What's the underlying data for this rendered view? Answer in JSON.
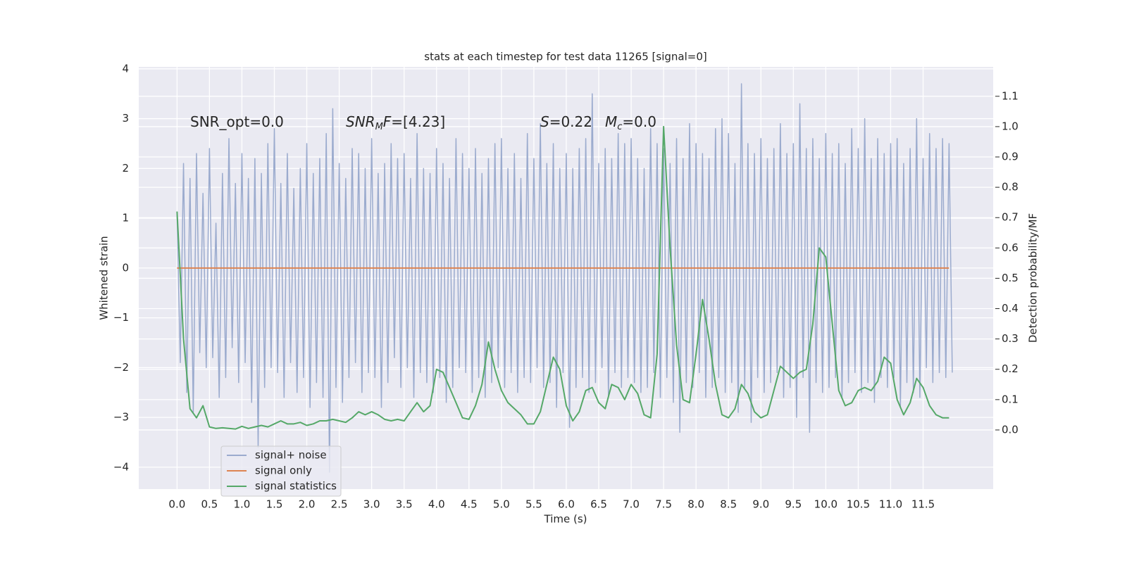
{
  "chart_data": {
    "type": "line",
    "title": "stats at each timestep for test data 11265 [signal=0]",
    "xlabel": "Time (s)",
    "ylabel": "Whitened strain",
    "y2label": "Detection probability/MF",
    "annotations": [
      [
        "SNR_opt=0.0"
      ],
      [
        "SNR",
        "M",
        "F",
        "=[4.23]"
      ],
      [
        "S",
        "=0.22"
      ],
      [
        "M",
        "c",
        "=0.0"
      ]
    ],
    "xlim": [
      -0.59,
      12.58
    ],
    "ylim": [
      -4.44,
      4.04
    ],
    "y2lim": [
      -0.195,
      1.197
    ],
    "xticks": [
      {
        "value": 0,
        "label": "0.0"
      },
      0.5,
      {
        "value": 1,
        "label": "1.0"
      },
      1.5,
      {
        "value": 2,
        "label": "2.0"
      },
      2.5,
      {
        "value": 3,
        "label": "3.0"
      },
      3.5,
      {
        "value": 4,
        "label": "4.0"
      },
      4.5,
      {
        "value": 5,
        "label": "5.0"
      },
      5.5,
      {
        "value": 6,
        "label": "6.0"
      },
      6.5,
      {
        "value": 7,
        "label": "7.0"
      },
      7.5,
      {
        "value": 8,
        "label": "8.0"
      },
      8.5,
      {
        "value": 9,
        "label": "9.0"
      },
      9.5,
      {
        "value": 10,
        "label": "10.0"
      },
      10.5,
      {
        "value": 11,
        "label": "11.0"
      },
      11.5
    ],
    "yticks": [
      {
        "value": -4,
        "label": "−4"
      },
      {
        "value": -3,
        "label": "−3"
      },
      {
        "value": -2,
        "label": "−2"
      },
      {
        "value": -1,
        "label": "−1"
      },
      0,
      1,
      2,
      3,
      4
    ],
    "y2ticks": [
      {
        "value": 0,
        "label": "0.0"
      },
      0.1,
      0.2,
      0.3,
      0.4,
      0.5,
      0.6,
      0.7,
      0.8,
      0.9,
      {
        "value": 1,
        "label": "1.0"
      },
      1.1
    ],
    "grid": true,
    "legend": "lower left",
    "x": [
      0,
      0.1,
      0.2,
      0.3,
      0.4,
      0.5,
      0.6,
      0.7,
      0.8,
      0.9,
      1,
      1.1,
      1.2,
      1.3,
      1.4,
      1.5,
      1.6,
      1.7,
      1.8,
      1.9,
      2,
      2.1,
      2.2,
      2.3,
      2.4,
      2.5,
      2.6,
      2.7,
      2.8,
      2.9,
      3,
      3.1,
      3.2,
      3.3,
      3.4,
      3.5,
      3.6,
      3.7,
      3.8,
      3.9,
      4,
      4.1,
      4.2,
      4.3,
      4.4,
      4.5,
      4.6,
      4.7,
      4.8,
      4.9,
      5,
      5.1,
      5.2,
      5.3,
      5.4,
      5.5,
      5.6,
      5.7,
      5.8,
      5.9,
      6,
      6.1,
      6.2,
      6.3,
      6.4,
      6.5,
      6.6,
      6.7,
      6.8,
      6.9,
      7,
      7.1,
      7.2,
      7.3,
      7.4,
      7.5,
      7.6,
      7.7,
      7.8,
      7.9,
      8,
      8.1,
      8.2,
      8.3,
      8.4,
      8.5,
      8.6,
      8.7,
      8.8,
      8.9,
      9,
      9.1,
      9.2,
      9.3,
      9.4,
      9.5,
      9.6,
      9.7,
      9.8,
      9.9,
      10,
      10.1,
      10.2,
      10.3,
      10.4,
      10.5,
      10.6,
      10.7,
      10.8,
      10.9,
      11,
      11.1,
      11.2,
      11.3,
      11.4,
      11.5,
      11.6,
      11.7,
      11.8,
      11.9
    ],
    "series": [
      {
        "name": "signal+ noise",
        "color": "#9babce",
        "x": [
          0,
          0.05,
          0.1,
          0.15,
          0.2,
          0.25,
          0.3,
          0.35,
          0.4,
          0.45,
          0.5,
          0.55,
          0.6,
          0.65,
          0.7,
          0.75,
          0.8,
          0.85,
          0.9,
          0.95,
          1,
          1.05,
          1.1,
          1.15,
          1.2,
          1.25,
          1.3,
          1.35,
          1.4,
          1.45,
          1.5,
          1.55,
          1.6,
          1.65,
          1.7,
          1.75,
          1.8,
          1.85,
          1.9,
          1.95,
          2,
          2.05,
          2.1,
          2.15,
          2.2,
          2.25,
          2.3,
          2.35,
          2.4,
          2.45,
          2.5,
          2.55,
          2.6,
          2.65,
          2.7,
          2.75,
          2.8,
          2.85,
          2.9,
          2.95,
          3,
          3.05,
          3.1,
          3.15,
          3.2,
          3.25,
          3.3,
          3.35,
          3.4,
          3.45,
          3.5,
          3.55,
          3.6,
          3.65,
          3.7,
          3.75,
          3.8,
          3.85,
          3.9,
          3.95,
          4,
          4.05,
          4.1,
          4.15,
          4.2,
          4.25,
          4.3,
          4.35,
          4.4,
          4.45,
          4.5,
          4.55,
          4.6,
          4.65,
          4.7,
          4.75,
          4.8,
          4.85,
          4.9,
          4.95,
          5,
          5.05,
          5.1,
          5.15,
          5.2,
          5.25,
          5.3,
          5.35,
          5.4,
          5.45,
          5.5,
          5.55,
          5.6,
          5.65,
          5.7,
          5.75,
          5.8,
          5.85,
          5.9,
          5.95,
          6,
          6.05,
          6.1,
          6.15,
          6.2,
          6.25,
          6.3,
          6.35,
          6.4,
          6.45,
          6.5,
          6.55,
          6.6,
          6.65,
          6.7,
          6.75,
          6.8,
          6.85,
          6.9,
          6.95,
          7,
          7.05,
          7.1,
          7.15,
          7.2,
          7.25,
          7.3,
          7.35,
          7.4,
          7.45,
          7.5,
          7.55,
          7.6,
          7.65,
          7.7,
          7.75,
          7.8,
          7.85,
          7.9,
          7.95,
          8,
          8.05,
          8.1,
          8.15,
          8.2,
          8.25,
          8.3,
          8.35,
          8.4,
          8.45,
          8.5,
          8.55,
          8.6,
          8.65,
          8.7,
          8.75,
          8.8,
          8.85,
          8.9,
          8.95,
          9,
          9.05,
          9.1,
          9.15,
          9.2,
          9.25,
          9.3,
          9.35,
          9.4,
          9.45,
          9.5,
          9.55,
          9.6,
          9.65,
          9.7,
          9.75,
          9.8,
          9.85,
          9.9,
          9.95,
          10,
          10.05,
          10.1,
          10.15,
          10.2,
          10.25,
          10.3,
          10.35,
          10.4,
          10.45,
          10.5,
          10.55,
          10.6,
          10.65,
          10.7,
          10.75,
          10.8,
          10.85,
          10.9,
          10.95,
          11,
          11.05,
          11.1,
          11.15,
          11.2,
          11.25,
          11.3,
          11.35,
          11.4,
          11.45,
          11.5,
          11.55,
          11.6,
          11.65,
          11.7,
          11.75,
          11.8,
          11.85,
          11.9,
          11.95
        ],
        "values": [
          1.1,
          -1.9,
          2.1,
          -2.5,
          1.8,
          -2.9,
          2.3,
          -1.7,
          1.5,
          -2.0,
          2.4,
          -1.8,
          0.9,
          -2.6,
          1.9,
          -2.2,
          2.6,
          -1.6,
          1.7,
          -2.3,
          2.3,
          -1.9,
          1.8,
          -2.7,
          2.2,
          -3.6,
          1.9,
          -2.4,
          2.5,
          -2.0,
          2.8,
          -2.1,
          1.7,
          -2.6,
          2.3,
          -1.9,
          1.6,
          -2.5,
          2.0,
          -2.2,
          2.5,
          -2.8,
          1.9,
          -2.3,
          2.2,
          -2.6,
          2.7,
          -4.1,
          3.2,
          -2.4,
          2.1,
          -2.7,
          1.8,
          -2.2,
          2.4,
          -1.9,
          2.3,
          -2.5,
          2.0,
          -2.1,
          2.6,
          -2.2,
          1.9,
          -2.8,
          2.1,
          -2.3,
          2.5,
          -1.8,
          2.2,
          -2.4,
          2.3,
          -2.0,
          1.8,
          -2.6,
          2.7,
          -2.1,
          2.0,
          -2.3,
          1.9,
          -2.5,
          2.4,
          -2.2,
          2.1,
          -2.7,
          1.8,
          -2.4,
          2.6,
          -2.0,
          2.3,
          -2.1,
          2.0,
          -2.5,
          2.4,
          -2.2,
          1.9,
          -2.6,
          2.2,
          -2.3,
          2.5,
          -2.0,
          2.6,
          -2.4,
          2.0,
          -2.1,
          2.3,
          -2.5,
          1.8,
          -2.2,
          2.7,
          -2.3,
          2.2,
          -2.0,
          2.9,
          -2.4,
          2.1,
          -2.3,
          2.5,
          -2.8,
          2.0,
          -2.1,
          2.3,
          -3.2,
          2.0,
          -2.4,
          2.4,
          -2.2,
          2.6,
          -2.5,
          3.5,
          -2.3,
          2.1,
          -2.0,
          2.4,
          -2.6,
          2.2,
          -2.1,
          2.7,
          -2.4,
          2.5,
          -2.2,
          2.6,
          -2.3,
          2.2,
          -2.5,
          2.0,
          -2.4,
          2.8,
          -2.1,
          2.5,
          -2.6,
          2.4,
          -2.2,
          2.1,
          -2.7,
          2.6,
          -3.3,
          2.2,
          -2.3,
          2.9,
          -2.4,
          2.5,
          -2.1,
          2.3,
          -2.6,
          2.2,
          -2.4,
          2.8,
          -2.2,
          3.0,
          -2.5,
          2.7,
          -2.3,
          2.1,
          -2.9,
          3.7,
          -2.4,
          2.5,
          -3.1,
          2.3,
          -2.2,
          2.6,
          -2.5,
          2.2,
          -2.3,
          2.4,
          -2.1,
          2.9,
          -2.6,
          2.3,
          -2.4,
          2.5,
          -3.0,
          3.3,
          -2.2,
          2.4,
          -3.3,
          2.6,
          -2.3,
          2.2,
          -2.5,
          2.7,
          -2.4,
          2.3,
          -2.2,
          2.5,
          -2.6,
          2.1,
          -2.3,
          2.8,
          -2.1,
          2.4,
          -2.5,
          3.0,
          -2.3,
          2.2,
          -2.7,
          2.6,
          -2.2,
          2.3,
          -2.4,
          2.5,
          -2.2,
          2.6,
          -2.8,
          2.1,
          -2.3,
          2.4,
          -2.5,
          3.0,
          -2.6,
          2.2,
          -2.0,
          2.7,
          -2.3,
          2.4,
          -2.1,
          2.6,
          -2.2,
          2.5,
          -2.1
        ]
      },
      {
        "name": "signal only",
        "color": "#dd8452",
        "values": [
          0,
          0,
          0,
          0,
          0,
          0,
          0,
          0,
          0,
          0,
          0,
          0,
          0,
          0,
          0,
          0,
          0,
          0,
          0,
          0,
          0,
          0,
          0,
          0,
          0,
          0,
          0,
          0,
          0,
          0,
          0,
          0,
          0,
          0,
          0,
          0,
          0,
          0,
          0,
          0,
          0,
          0,
          0,
          0,
          0,
          0,
          0,
          0,
          0,
          0,
          0,
          0,
          0,
          0,
          0,
          0,
          0,
          0,
          0,
          0,
          0,
          0,
          0,
          0,
          0,
          0,
          0,
          0,
          0,
          0,
          0,
          0,
          0,
          0,
          0,
          0,
          0,
          0,
          0,
          0,
          0,
          0,
          0,
          0,
          0,
          0,
          0,
          0,
          0,
          0,
          0,
          0,
          0,
          0,
          0,
          0,
          0,
          0,
          0,
          0,
          0,
          0,
          0,
          0,
          0,
          0,
          0,
          0,
          0,
          0,
          0,
          0,
          0,
          0,
          0,
          0,
          0,
          0,
          0,
          0
        ]
      },
      {
        "name": "signal statistics",
        "color": "#55a868",
        "axis": "y2",
        "values": [
          0.72,
          0.3,
          0.07,
          0.04,
          0.08,
          0.01,
          0.005,
          0.007,
          0.005,
          0.003,
          0.012,
          0.005,
          0.01,
          0.015,
          0.01,
          0.02,
          0.03,
          0.02,
          0.02,
          0.025,
          0.015,
          0.02,
          0.03,
          0.03,
          0.035,
          0.03,
          0.025,
          0.04,
          0.06,
          0.05,
          0.06,
          0.05,
          0.035,
          0.03,
          0.035,
          0.03,
          0.06,
          0.09,
          0.06,
          0.08,
          0.2,
          0.19,
          0.14,
          0.09,
          0.04,
          0.035,
          0.08,
          0.15,
          0.29,
          0.2,
          0.13,
          0.09,
          0.07,
          0.05,
          0.02,
          0.02,
          0.06,
          0.15,
          0.24,
          0.2,
          0.08,
          0.03,
          0.06,
          0.13,
          0.14,
          0.09,
          0.07,
          0.15,
          0.14,
          0.1,
          0.15,
          0.12,
          0.05,
          0.04,
          0.25,
          1.0,
          0.6,
          0.28,
          0.1,
          0.09,
          0.25,
          0.43,
          0.3,
          0.15,
          0.05,
          0.04,
          0.07,
          0.15,
          0.12,
          0.06,
          0.04,
          0.05,
          0.13,
          0.21,
          0.19,
          0.17,
          0.19,
          0.2,
          0.35,
          0.6,
          0.57,
          0.35,
          0.13,
          0.08,
          0.09,
          0.13,
          0.14,
          0.13,
          0.16,
          0.24,
          0.22,
          0.1,
          0.05,
          0.09,
          0.17,
          0.14,
          0.08,
          0.05,
          0.04,
          0.04
        ]
      }
    ]
  }
}
